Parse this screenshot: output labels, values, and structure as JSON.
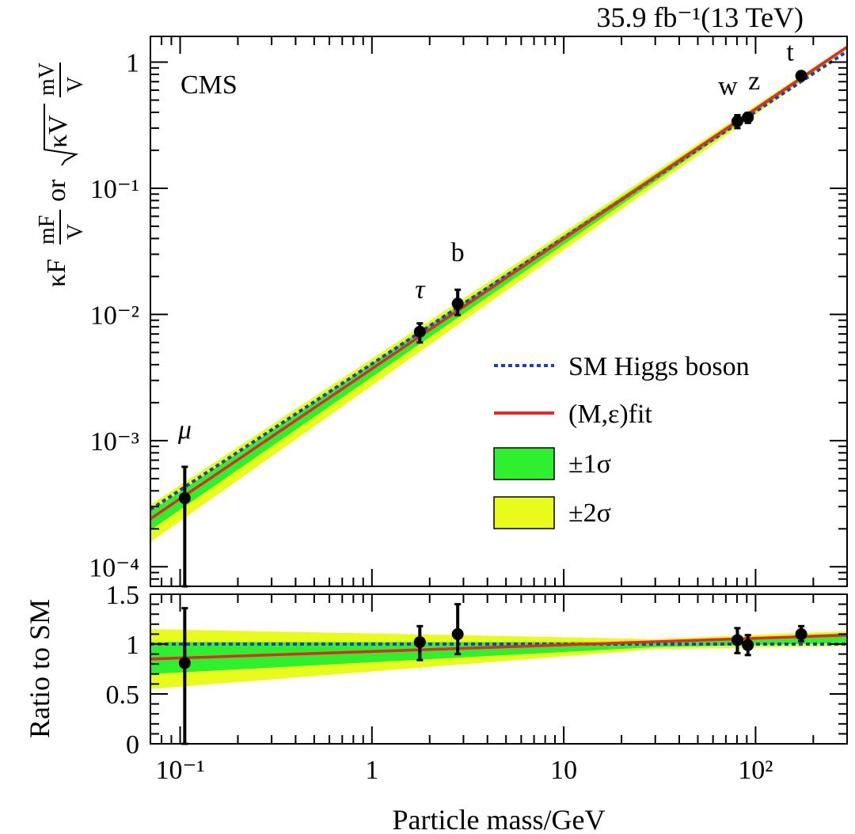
{
  "chart_data": [
    {
      "type": "scatter",
      "panel": "main",
      "xscale": "log",
      "yscale": "log",
      "xlim": [
        0.07,
        300
      ],
      "ylim": [
        7e-05,
        1.6
      ],
      "lumi_label": "35.9 fb⁻¹(13 TeV)",
      "experiment_label": "CMS",
      "ylabel": {
        "kappa_f": "κF",
        "mass_f": "mF",
        "vev": "V",
        "or": "or",
        "kappa_v": "κV",
        "mass_v": "mV"
      },
      "ytick_labels": [
        "10⁻⁴",
        "10⁻³",
        "10⁻²",
        "10⁻¹",
        "1"
      ],
      "ytick_values": [
        0.0001,
        0.001,
        0.01,
        0.1,
        1
      ],
      "points": [
        {
          "label": "μ",
          "x": 0.1057,
          "y": 0.00035,
          "yerr_low": 0.00035,
          "yerr_high": 0.00027
        },
        {
          "label": "τ",
          "x": 1.777,
          "y": 0.0073,
          "yerr_low": 0.0013,
          "yerr_high": 0.0012
        },
        {
          "label": "b",
          "x": 2.8,
          "y": 0.0122,
          "yerr_low": 0.0023,
          "yerr_high": 0.0035
        },
        {
          "label": "w",
          "x": 80.4,
          "y": 0.34,
          "yerr_low": 0.04,
          "yerr_high": 0.04
        },
        {
          "label": "z",
          "x": 91.2,
          "y": 0.365,
          "yerr_low": 0.035,
          "yerr_high": 0.03
        },
        {
          "label": "t",
          "x": 173.0,
          "y": 0.78,
          "yerr_low": 0.06,
          "yerr_high": 0.06
        }
      ],
      "lines": [
        {
          "name": "SM Higgs boson",
          "style": "dotted",
          "color": "#1f3fbf",
          "x": [
            0.07,
            300
          ],
          "y": [
            0.000284,
            1.218
          ]
        },
        {
          "name": "(M,ε)fit",
          "style": "solid",
          "color": "#e8262b",
          "x": [
            0.07,
            300
          ],
          "y": [
            0.00024,
            1.32
          ]
        }
      ],
      "bands": [
        {
          "name": "±2σ",
          "color": "#e8fb1a",
          "x": [
            0.07,
            300
          ],
          "y_low": [
            0.000157,
            1.25
          ],
          "y_high": [
            0.00031,
            1.36
          ]
        },
        {
          "name": "±1σ",
          "color": "#2ff02f",
          "x": [
            0.07,
            300
          ],
          "y_low": [
            0.000195,
            1.28
          ],
          "y_high": [
            0.000275,
            1.34
          ]
        }
      ],
      "legend": {
        "position": "right",
        "entries": [
          "SM Higgs boson",
          "(M,ε)fit",
          "±1σ",
          "±2σ"
        ]
      }
    },
    {
      "type": "scatter",
      "panel": "ratio",
      "xscale": "log",
      "xlim": [
        0.07,
        300
      ],
      "ylim": [
        0,
        1.5
      ],
      "xlabel": "Particle mass/GeV",
      "ylabel": "Ratio to SM",
      "xtick_labels": [
        "10⁻¹",
        "1",
        "10",
        "10²"
      ],
      "xtick_values": [
        0.1,
        1,
        10,
        100
      ],
      "ytick_labels": [
        "0",
        "0.5",
        "1",
        "1.5"
      ],
      "ytick_values": [
        0,
        0.5,
        1,
        1.5
      ],
      "points": [
        {
          "x": 0.1057,
          "y": 0.81,
          "yerr_low": 0.81,
          "yerr_high": 0.55
        },
        {
          "x": 1.777,
          "y": 1.02,
          "yerr_low": 0.18,
          "yerr_high": 0.16
        },
        {
          "x": 2.8,
          "y": 1.1,
          "yerr_low": 0.2,
          "yerr_high": 0.3
        },
        {
          "x": 80.4,
          "y": 1.04,
          "yerr_low": 0.13,
          "yerr_high": 0.12
        },
        {
          "x": 91.2,
          "y": 0.99,
          "yerr_low": 0.1,
          "yerr_high": 0.1
        },
        {
          "x": 173.0,
          "y": 1.1,
          "yerr_low": 0.07,
          "yerr_high": 0.08
        }
      ],
      "lines": [
        {
          "name": "SM Higgs boson",
          "style": "dotted",
          "color": "#1f3fbf",
          "x": [
            0.07,
            300
          ],
          "y": [
            1.0,
            1.0
          ]
        },
        {
          "name": "(M,ε)fit",
          "style": "solid",
          "color": "#e8262b",
          "x": [
            0.07,
            300
          ],
          "y": [
            0.85,
            1.09
          ]
        }
      ],
      "bands": [
        {
          "name": "±2σ",
          "color": "#e8fb1a",
          "x": [
            0.07,
            30,
            300
          ],
          "y_low": [
            0.55,
            0.95,
            0.98
          ],
          "y_high": [
            1.15,
            1.05,
            1.13
          ]
        },
        {
          "name": "±1σ",
          "color": "#2ff02f",
          "x": [
            0.07,
            30,
            300
          ],
          "y_low": [
            0.7,
            0.97,
            1.01
          ],
          "y_high": [
            1.02,
            1.02,
            1.11
          ]
        }
      ]
    }
  ]
}
